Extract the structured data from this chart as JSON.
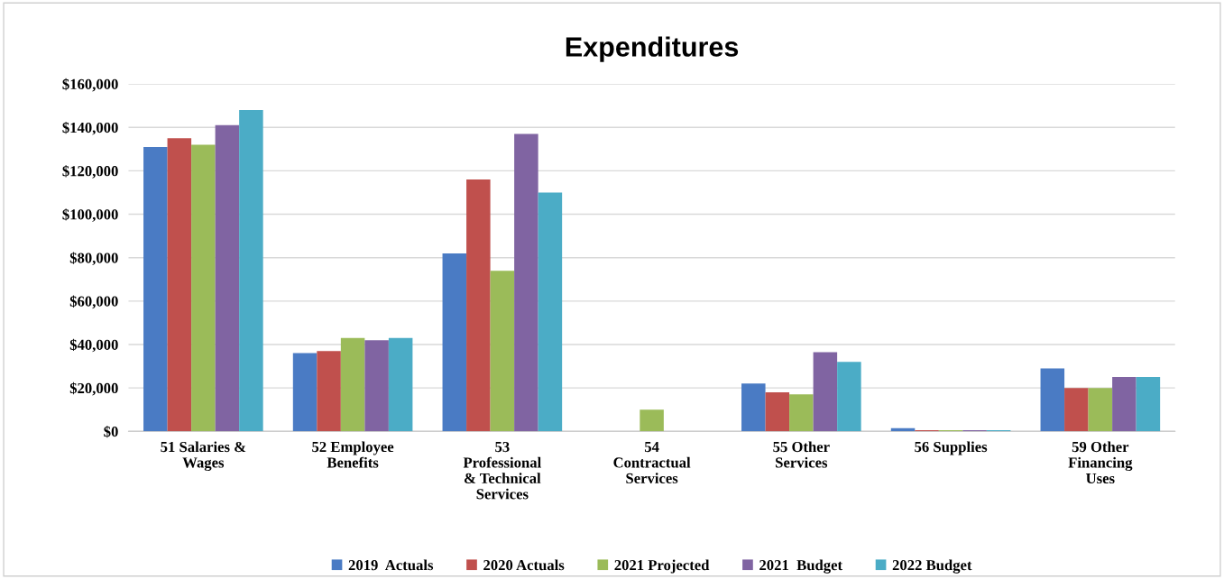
{
  "chart_data": {
    "type": "bar",
    "title": "Expenditures",
    "categories": [
      "51 Salaries &\nWages",
      "52 Employee\nBenefits",
      "53\nProfessional\n& Technical\nServices",
      "54\nContractual\nServices",
      "55 Other\nServices",
      "56 Supplies",
      "59 Other\nFinancing\nUses"
    ],
    "series": [
      {
        "name": "2019  Actuals",
        "color": "#4a7bc4",
        "values": [
          131000,
          36000,
          82000,
          0,
          22000,
          1500,
          29000
        ]
      },
      {
        "name": "2020 Actuals",
        "color": "#c0504d",
        "values": [
          135000,
          37000,
          116000,
          0,
          18000,
          500,
          20000
        ]
      },
      {
        "name": "2021 Projected",
        "color": "#9bbb59",
        "values": [
          132000,
          43000,
          74000,
          10000,
          17000,
          500,
          20000
        ]
      },
      {
        "name": "2021  Budget",
        "color": "#8064a2",
        "values": [
          141000,
          42000,
          137000,
          0,
          36500,
          500,
          25000
        ]
      },
      {
        "name": "2022 Budget",
        "color": "#4bacc6",
        "values": [
          148000,
          43000,
          110000,
          0,
          32000,
          500,
          25000
        ]
      }
    ],
    "ylim": [
      0,
      160000
    ],
    "yticks": [
      {
        "value": 0,
        "label": "$0"
      },
      {
        "value": 20000,
        "label": "$20,000"
      },
      {
        "value": 40000,
        "label": "$40,000"
      },
      {
        "value": 60000,
        "label": "$60,000"
      },
      {
        "value": 80000,
        "label": "$80,000"
      },
      {
        "value": 100000,
        "label": "$100,000"
      },
      {
        "value": 120000,
        "label": "$120,000"
      },
      {
        "value": 140000,
        "label": "$140,000"
      },
      {
        "value": 160000,
        "label": "$160,000"
      }
    ],
    "grid": "y",
    "legend": "bottom"
  }
}
